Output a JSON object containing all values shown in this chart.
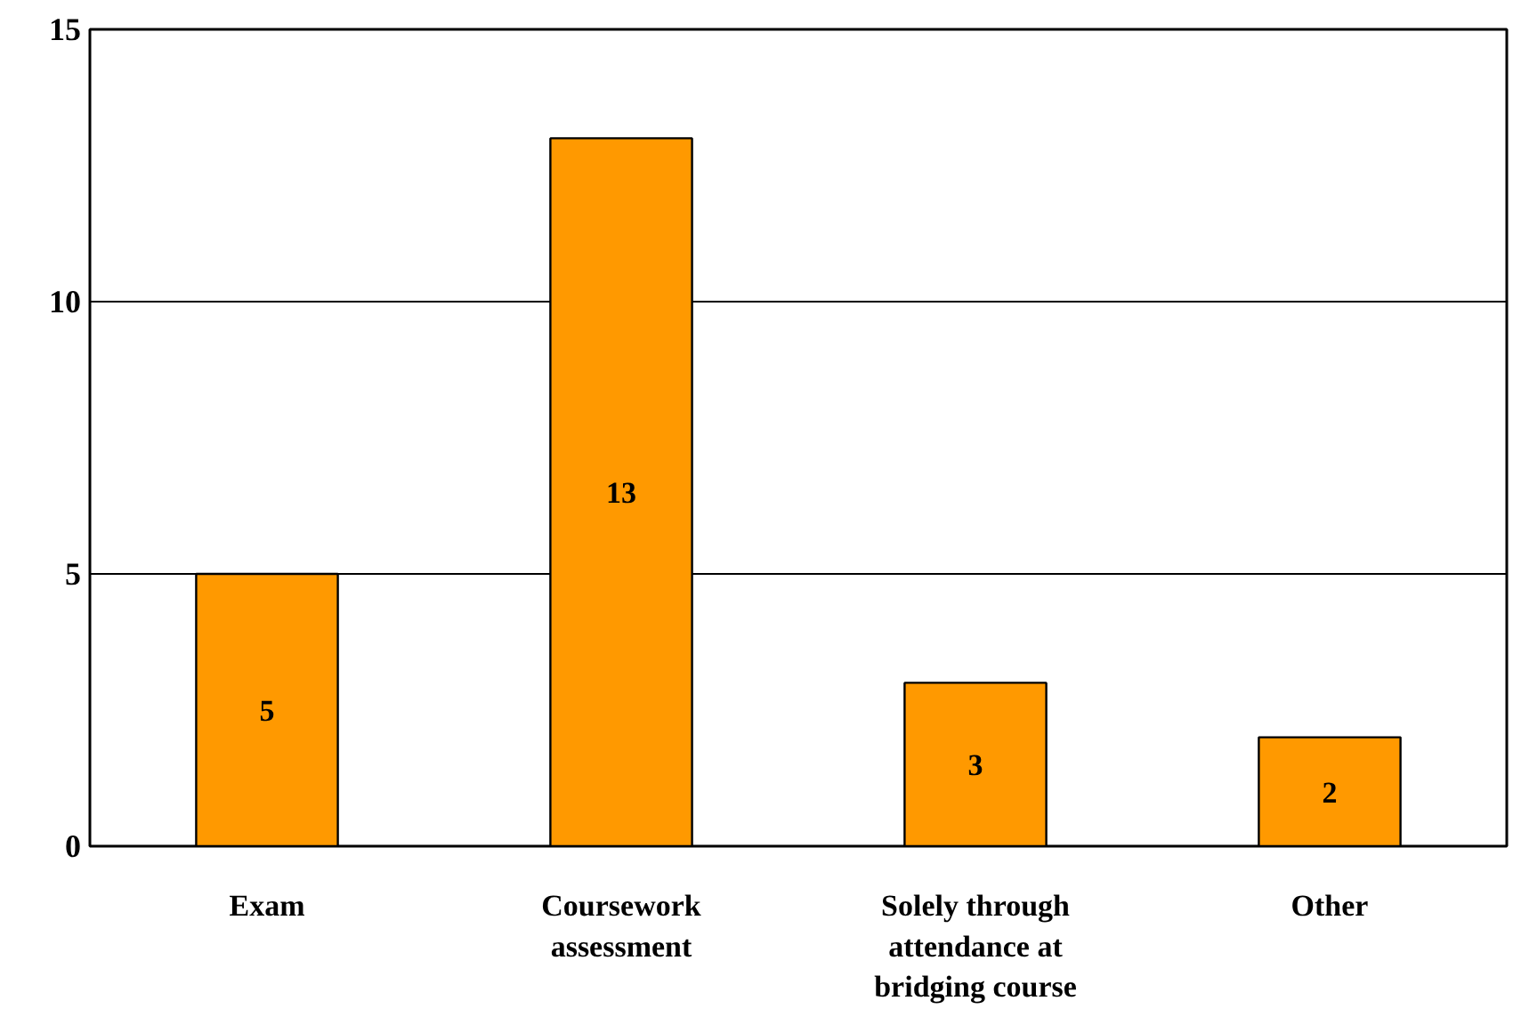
{
  "chart_data": {
    "type": "bar",
    "categories": [
      "Exam",
      "Coursework assessment",
      "Solely through attendance at bridging course",
      "Other"
    ],
    "values": [
      5,
      13,
      3,
      2
    ],
    "color": "#ff9900",
    "ylim": [
      0,
      15
    ],
    "yticks": [
      0,
      5,
      10,
      15
    ],
    "grid": "y",
    "data_labels": true
  }
}
